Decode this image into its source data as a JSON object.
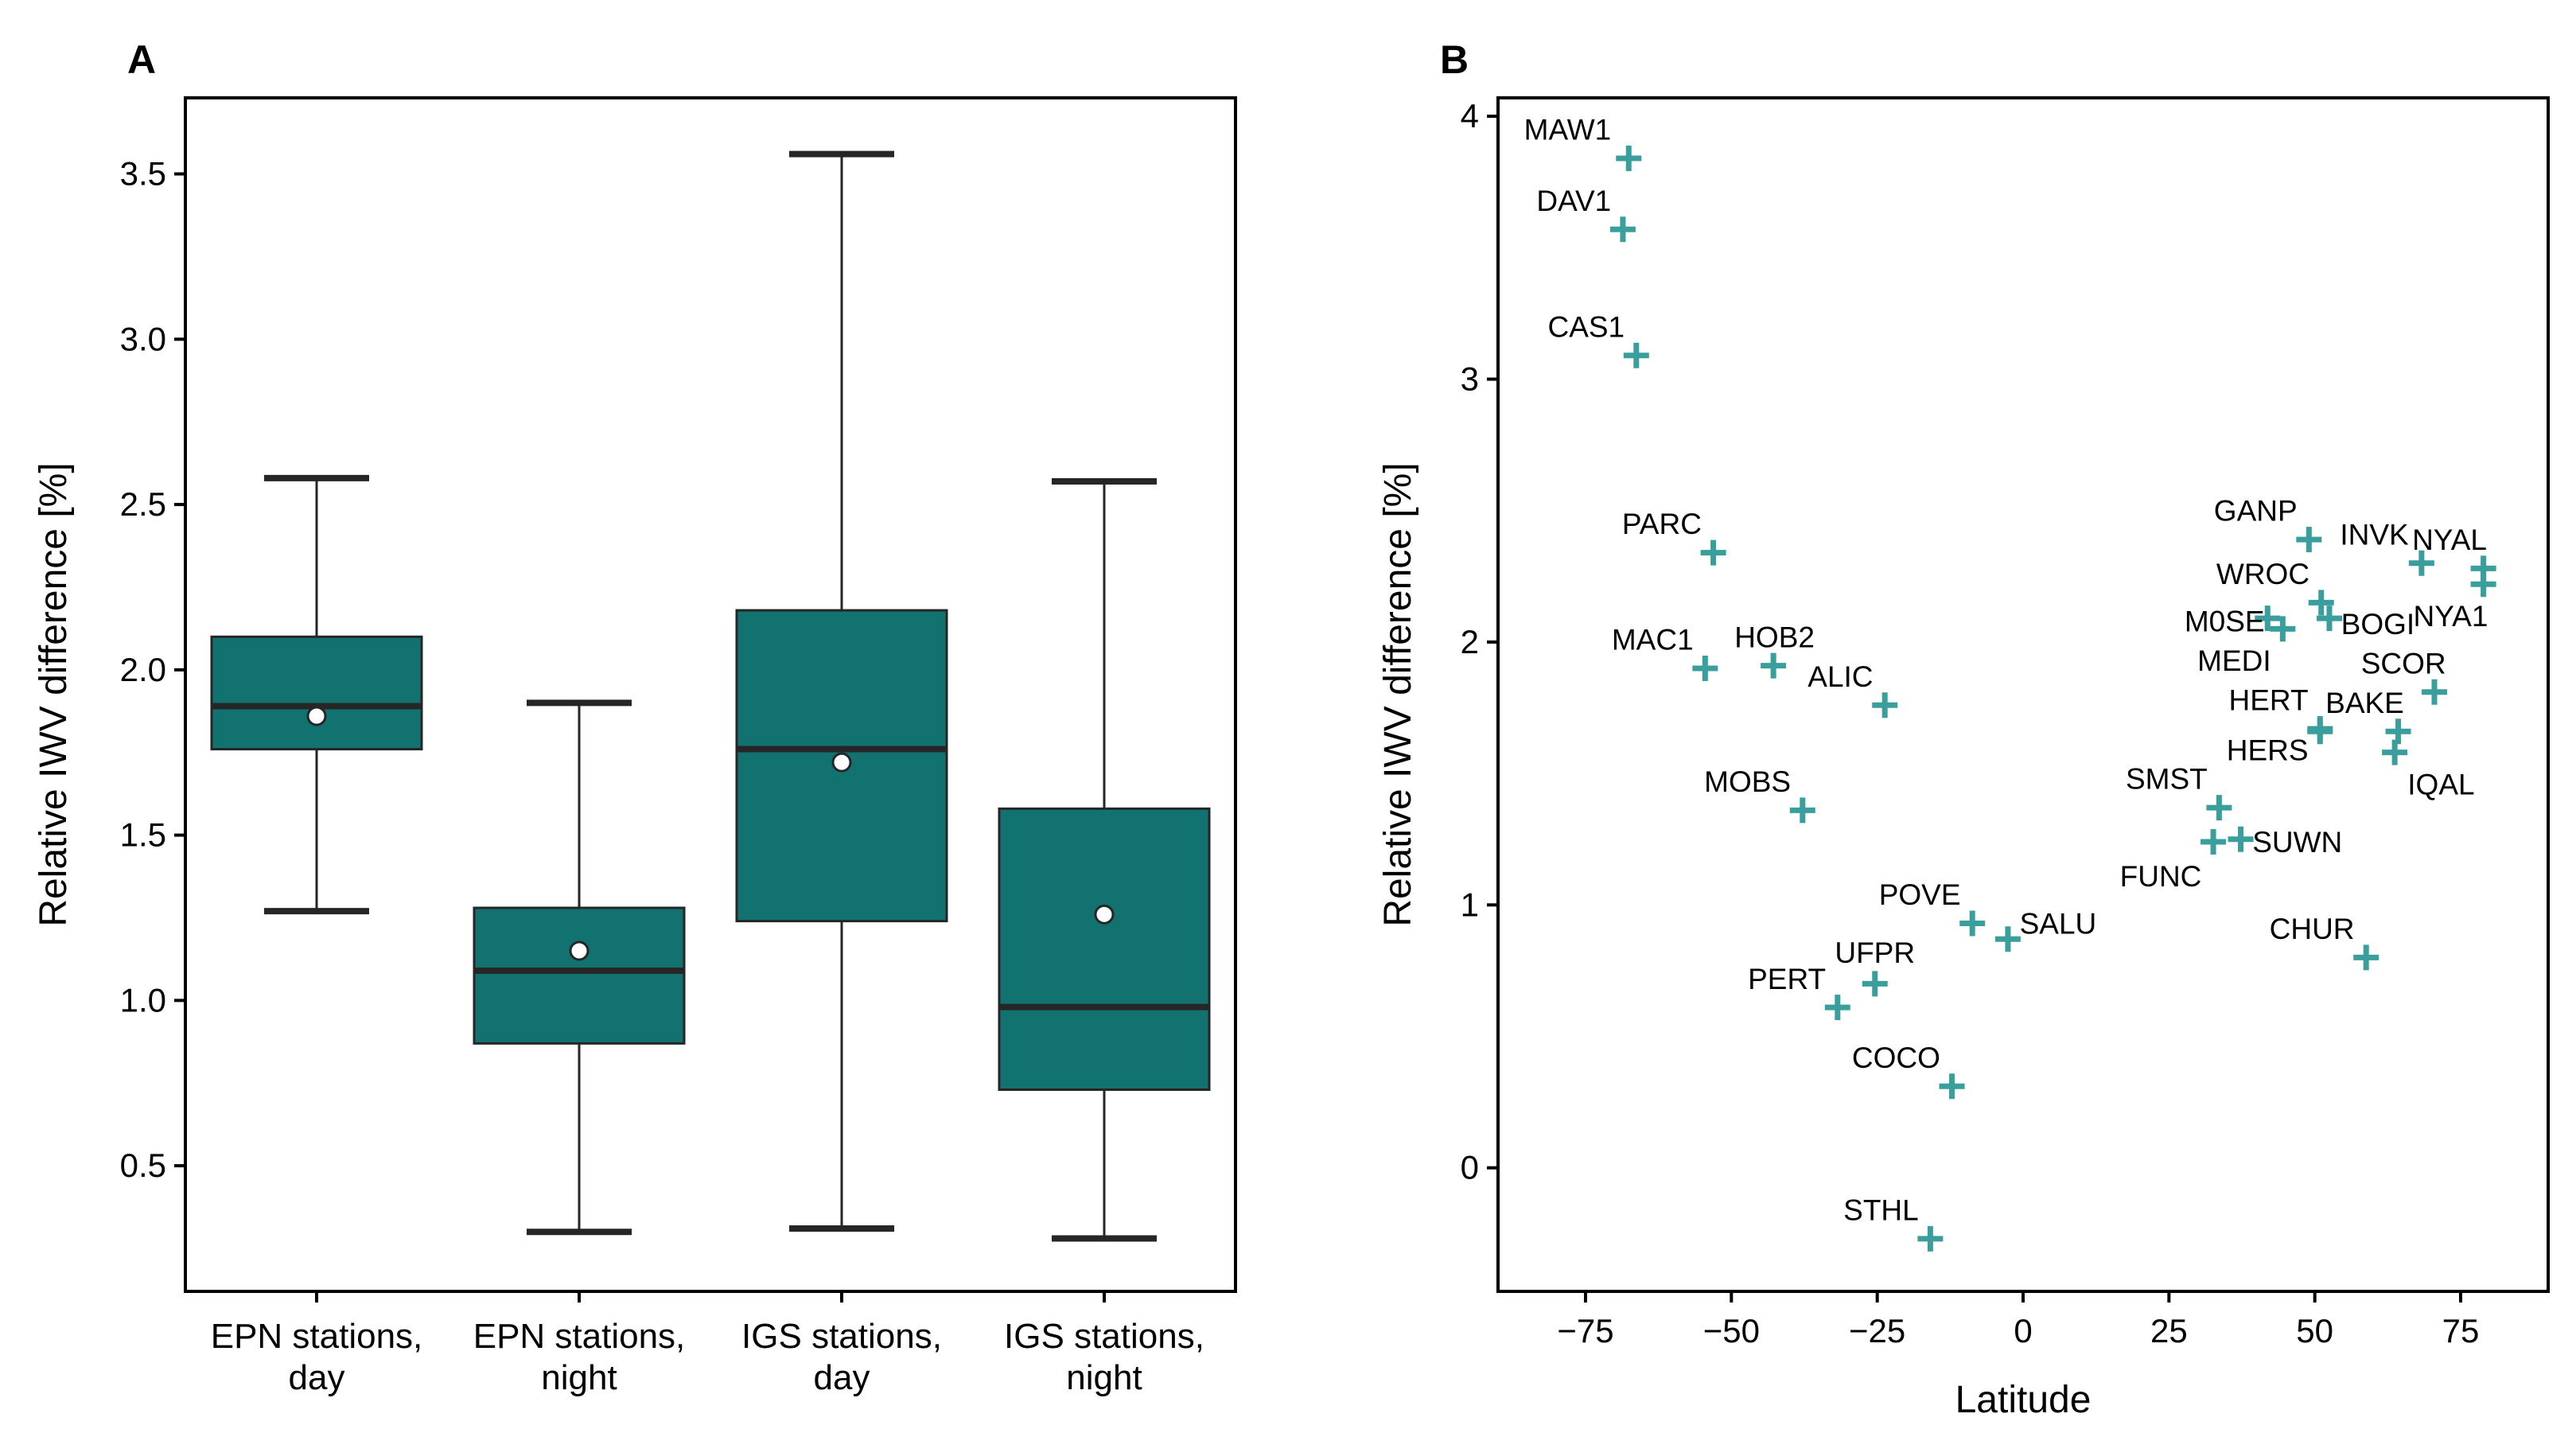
{
  "chart_data": [
    {
      "panel": "A",
      "type": "box",
      "ylabel": "Relative IWV difference [%]",
      "ylim": [
        0.12,
        3.73
      ],
      "yticks": [
        0.5,
        1.0,
        1.5,
        2.0,
        2.5,
        3.0,
        3.5
      ],
      "ytick_labels": [
        "0.5",
        "1.0",
        "1.5",
        "2.0",
        "2.5",
        "3.0",
        "3.5"
      ],
      "box_color": "#117270",
      "categories": [
        {
          "label_lines": [
            "EPN stations,",
            "day"
          ]
        },
        {
          "label_lines": [
            "EPN stations,",
            "night"
          ]
        },
        {
          "label_lines": [
            "IGS stations,",
            "day"
          ]
        },
        {
          "label_lines": [
            "IGS stations,",
            "night"
          ]
        }
      ],
      "boxes": [
        {
          "whisker_low": 1.27,
          "q1": 1.76,
          "median": 1.89,
          "q3": 2.1,
          "whisker_high": 2.58,
          "mean": 1.86
        },
        {
          "whisker_low": 0.3,
          "q1": 0.87,
          "median": 1.09,
          "q3": 1.28,
          "whisker_high": 1.9,
          "mean": 1.15
        },
        {
          "whisker_low": 0.31,
          "q1": 1.24,
          "median": 1.76,
          "q3": 2.18,
          "whisker_high": 3.56,
          "mean": 1.72
        },
        {
          "whisker_low": 0.28,
          "q1": 0.73,
          "median": 0.98,
          "q3": 1.58,
          "whisker_high": 2.57,
          "mean": 1.26
        }
      ]
    },
    {
      "panel": "B",
      "type": "scatter",
      "xlabel": "Latitude",
      "ylabel": "Relative IWV difference [%]",
      "xlim": [
        -90,
        90
      ],
      "ylim": [
        -0.47,
        4.07
      ],
      "xticks": [
        -75,
        -50,
        -25,
        0,
        25,
        50,
        75
      ],
      "xtick_labels": [
        "−75",
        "−50",
        "−25",
        "0",
        "25",
        "50",
        "75"
      ],
      "yticks": [
        0,
        1,
        2,
        3,
        4
      ],
      "ytick_labels": [
        "0",
        "1",
        "2",
        "3",
        "4"
      ],
      "marker_color": "#3a9f9c",
      "points": [
        {
          "name": "MAW1",
          "lat": -67.6,
          "value": 3.84,
          "anchor": "right",
          "lx": -3.0,
          "ly": 0.11
        },
        {
          "name": "DAV1",
          "lat": -68.6,
          "value": 3.57,
          "anchor": "right",
          "lx": -2.0,
          "ly": 0.11
        },
        {
          "name": "CAS1",
          "lat": -66.3,
          "value": 3.09,
          "anchor": "right",
          "lx": -2.0,
          "ly": 0.11
        },
        {
          "name": "PARC",
          "lat": -53.1,
          "value": 2.34,
          "anchor": "right",
          "lx": -2.0,
          "ly": 0.11
        },
        {
          "name": "MAC1",
          "lat": -54.5,
          "value": 1.9,
          "anchor": "right",
          "lx": -2.0,
          "ly": 0.11
        },
        {
          "name": "HOB2",
          "lat": -42.8,
          "value": 1.91,
          "anchor": "middle",
          "lx": 0.2,
          "ly": 0.11
        },
        {
          "name": "ALIC",
          "lat": -23.7,
          "value": 1.76,
          "anchor": "right",
          "lx": -2.0,
          "ly": 0.11
        },
        {
          "name": "MOBS",
          "lat": -37.8,
          "value": 1.36,
          "anchor": "right",
          "lx": -2.0,
          "ly": 0.11
        },
        {
          "name": "POVE",
          "lat": -8.7,
          "value": 0.93,
          "anchor": "right",
          "lx": -2.0,
          "ly": 0.11
        },
        {
          "name": "SALU",
          "lat": -2.6,
          "value": 0.87,
          "anchor": "left",
          "lx": 2.0,
          "ly": 0.06
        },
        {
          "name": "UFPR",
          "lat": -25.4,
          "value": 0.7,
          "anchor": "middle",
          "lx": 0.0,
          "ly": 0.12
        },
        {
          "name": "PERT",
          "lat": -31.8,
          "value": 0.61,
          "anchor": "right",
          "lx": -2.0,
          "ly": 0.11
        },
        {
          "name": "COCO",
          "lat": -12.2,
          "value": 0.31,
          "anchor": "right",
          "lx": -2.0,
          "ly": 0.11
        },
        {
          "name": "STHL",
          "lat": -15.9,
          "value": -0.27,
          "anchor": "right",
          "lx": -2.0,
          "ly": 0.11
        },
        {
          "name": "GANP",
          "lat": 49.0,
          "value": 2.39,
          "anchor": "right",
          "lx": -2.0,
          "ly": 0.11
        },
        {
          "name": "INVK",
          "lat": 68.3,
          "value": 2.3,
          "anchor": "right",
          "lx": -2.2,
          "ly": 0.11
        },
        {
          "name": "NYAL",
          "lat": 78.9,
          "value": 2.28,
          "anchor": "right",
          "lx": 0.6,
          "ly": 0.11
        },
        {
          "name": "NYA1",
          "lat": 78.9,
          "value": 2.22,
          "anchor": "right",
          "lx": 0.8,
          "ly": -0.12
        },
        {
          "name": "WROC",
          "lat": 51.1,
          "value": 2.15,
          "anchor": "right",
          "lx": -2.0,
          "ly": 0.11
        },
        {
          "name": "BOGI",
          "lat": 52.5,
          "value": 2.09,
          "anchor": "left",
          "lx": 2.0,
          "ly": -0.02
        },
        {
          "name": "M0SE",
          "lat": 41.9,
          "value": 2.09,
          "anchor": "right",
          "lx": -0.5,
          "ly": -0.01
        },
        {
          "name": "MEDI",
          "lat": 44.5,
          "value": 2.05,
          "anchor": "right",
          "lx": -2.0,
          "ly": -0.12
        },
        {
          "name": "SCOR",
          "lat": 70.5,
          "value": 1.81,
          "anchor": "right",
          "lx": 2.0,
          "ly": 0.11
        },
        {
          "name": "BAKE",
          "lat": 64.3,
          "value": 1.66,
          "anchor": "right",
          "lx": 1.0,
          "ly": 0.11
        },
        {
          "name": "HERT",
          "lat": 50.9,
          "value": 1.67,
          "anchor": "right",
          "lx": -2.0,
          "ly": 0.11
        },
        {
          "name": "HERS",
          "lat": 50.9,
          "value": 1.66,
          "anchor": "right",
          "lx": -2.0,
          "ly": -0.07
        },
        {
          "name": "IQAL",
          "lat": 63.7,
          "value": 1.58,
          "anchor": "left",
          "lx": 2.2,
          "ly": -0.12
        },
        {
          "name": "SMST",
          "lat": 33.6,
          "value": 1.37,
          "anchor": "right",
          "lx": -2.0,
          "ly": 0.11
        },
        {
          "name": "SUWN",
          "lat": 37.3,
          "value": 1.25,
          "anchor": "left",
          "lx": 2.0,
          "ly": -0.01
        },
        {
          "name": "FUNC",
          "lat": 32.6,
          "value": 1.24,
          "anchor": "right",
          "lx": -2.0,
          "ly": -0.13
        },
        {
          "name": "CHUR",
          "lat": 58.8,
          "value": 0.8,
          "anchor": "right",
          "lx": -2.0,
          "ly": 0.11
        }
      ]
    }
  ]
}
